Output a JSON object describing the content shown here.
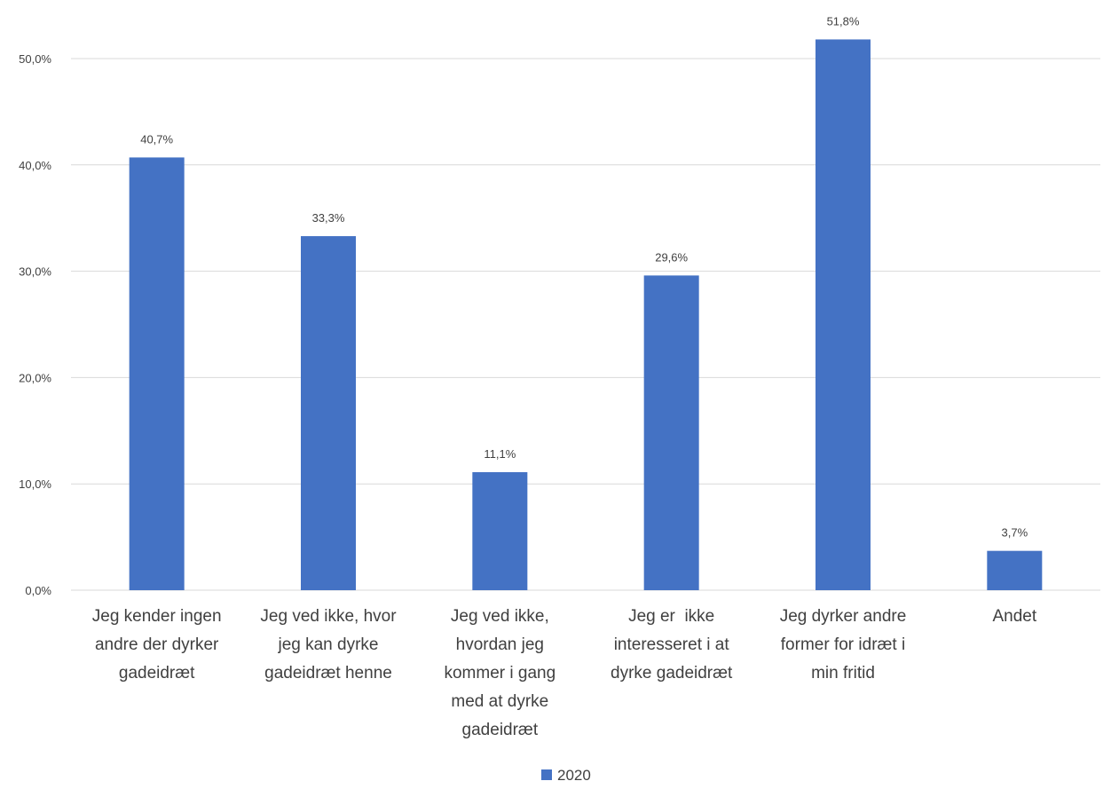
{
  "chart_data": {
    "type": "bar",
    "categories": [
      [
        "Jeg kender ingen",
        "andre der dyrker",
        "gadeidræt"
      ],
      [
        "Jeg ved ikke, hvor",
        "jeg kan dyrke",
        "gadeidræt henne"
      ],
      [
        "Jeg ved ikke,",
        "hvordan jeg",
        "kommer i gang",
        "med at dyrke",
        "gadeidræt"
      ],
      [
        "Jeg er  ikke",
        "interesseret i at",
        "dyrke gadeidræt"
      ],
      [
        "Jeg dyrker andre",
        "former for idræt i",
        "min fritid"
      ],
      [
        "Andet"
      ]
    ],
    "series": [
      {
        "name": "2020",
        "values": [
          40.7,
          33.3,
          11.1,
          29.6,
          51.8,
          3.7
        ],
        "labels": [
          "40,7%",
          "33,3%",
          "11,1%",
          "29,6%",
          "51,8%",
          "3,7%"
        ],
        "color": "#4472c4"
      }
    ],
    "ylim": [
      0,
      50
    ],
    "yticks": [
      "0,0%",
      "10,0%",
      "20,0%",
      "30,0%",
      "40,0%",
      "50,0%"
    ],
    "ytick_values": [
      0,
      10,
      20,
      30,
      40,
      50
    ],
    "grid": true,
    "gridColor": "#d9d9d9",
    "legend_position": "bottom",
    "title": "",
    "xlabel": "",
    "ylabel": ""
  }
}
